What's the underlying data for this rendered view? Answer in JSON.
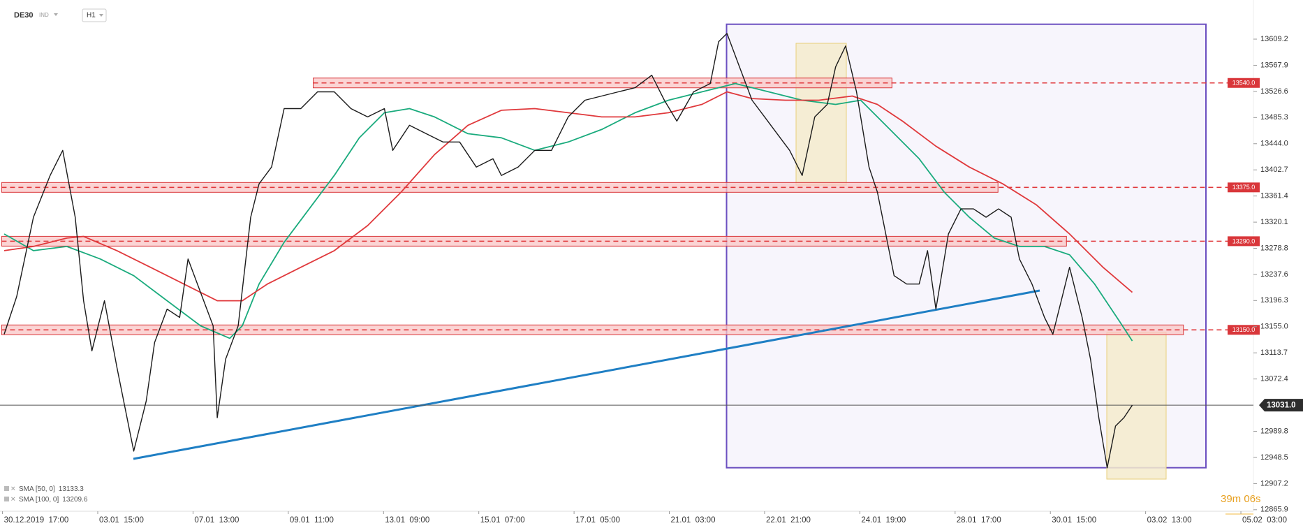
{
  "chart_data": {
    "type": "line",
    "symbol": "DE30",
    "instrument_type": "IND",
    "timeframe": "H1",
    "countdown": "39m 06s",
    "xlim": [
      -3,
      1497
    ],
    "ylim": [
      12863.5,
      13671
    ],
    "xticks": [
      {
        "value": 0,
        "label": "30.12.2019  17:00"
      },
      {
        "value": 114,
        "label": "03.01  15:00"
      },
      {
        "value": 228,
        "label": "07.01  13:00"
      },
      {
        "value": 342,
        "label": "09.01  11:00"
      },
      {
        "value": 456,
        "label": "13.01  09:00"
      },
      {
        "value": 570,
        "label": "15.01  07:00"
      },
      {
        "value": 684,
        "label": "17.01  05:00"
      },
      {
        "value": 798,
        "label": "21.01  03:00"
      },
      {
        "value": 912,
        "label": "22.01  21:00"
      },
      {
        "value": 1026,
        "label": "24.01  19:00"
      },
      {
        "value": 1140,
        "label": "28.01  17:00"
      },
      {
        "value": 1254,
        "label": "30.01  15:00"
      },
      {
        "value": 1368,
        "label": "03.02  13:00"
      },
      {
        "value": 1482,
        "label": "05.02  03:00"
      }
    ],
    "yticks": [
      13609.2,
      13567.9,
      13526.6,
      13485.3,
      {
        "value": 13444,
        "label": "13444.0"
      },
      13402.7,
      13361.4,
      13320.1,
      13278.8,
      13237.6,
      13196.3,
      {
        "value": 13155,
        "label": "13155.0"
      },
      13113.7,
      13072.4,
      12989.8,
      12948.5,
      12907.2,
      12865.9
    ],
    "last_price": {
      "value": 13031,
      "label": "13031.0"
    },
    "levels": [
      {
        "value": 13540,
        "label": "13540.0"
      },
      {
        "value": 13375,
        "label": "13375.0"
      },
      {
        "value": 13290,
        "label": "13290.0"
      },
      {
        "value": 13150,
        "label": "13150.0"
      }
    ],
    "series": [
      {
        "color": "#1b1b1b",
        "x": [
          2,
          17,
          37,
          57,
          72,
          87,
          97,
          107,
          122,
          137,
          157,
          172,
          182,
          197,
          212,
          222,
          237,
          252,
          257,
          267,
          282,
          297,
          307,
          322,
          337,
          357,
          377,
          397,
          417,
          437,
          457,
          467,
          487,
          507,
          527,
          547,
          567,
          587,
          597,
          617,
          637,
          657,
          677,
          697,
          717,
          737,
          757,
          777,
          792,
          807,
          827,
          847,
          857,
          867,
          882,
          897,
          912,
          927,
          942,
          957,
          972,
          987,
          997,
          1009,
          1022,
          1037,
          1047,
          1057,
          1067,
          1082,
          1097,
          1107,
          1117,
          1132,
          1147,
          1162,
          1177,
          1192,
          1207,
          1217,
          1232,
          1247,
          1257,
          1267,
          1277,
          1292,
          1302,
          1312,
          1322,
          1332,
          1342,
          1352
        ],
        "values": [
          13143.2,
          13202.6,
          13327.9,
          13393.9,
          13433.5,
          13327.9,
          13196.0,
          13116.8,
          13196.0,
          13090.4,
          12958.5,
          13037.6,
          13130.0,
          13182.8,
          13169.6,
          13262.0,
          13209.2,
          13156.4,
          13011.2,
          13103.6,
          13156.4,
          13327.9,
          13380.7,
          13407.1,
          13499.5,
          13499.5,
          13525.9,
          13525.9,
          13499.5,
          13486.3,
          13499.5,
          13433.5,
          13473.1,
          13459.9,
          13446.7,
          13446.7,
          13407.1,
          13420.3,
          13393.9,
          13407.1,
          13433.5,
          13433.5,
          13486.3,
          13512.7,
          13519.3,
          13525.9,
          13532.5,
          13552.2,
          13512.7,
          13479.7,
          13525.9,
          13539.1,
          13605.0,
          13618.2,
          13565.4,
          13512.7,
          13486.3,
          13459.9,
          13433.5,
          13393.9,
          13486.3,
          13506.1,
          13565.4,
          13598.4,
          13525.9,
          13407.1,
          13367.5,
          13301.5,
          13235.6,
          13222.4,
          13222.4,
          13275.1,
          13182.8,
          13301.5,
          13341.1,
          13341.1,
          13327.9,
          13341.1,
          13327.9,
          13262.0,
          13222.4,
          13169.6,
          13143.2,
          13196.0,
          13248.8,
          13169.6,
          13103.6,
          13011.2,
          12932.1,
          12998.1,
          13011.2,
          13031.0
        ]
      },
      {
        "name": "SMA [50, 0]",
        "legend_value": 13133.3,
        "color": "#1aab7d",
        "x": [
          2,
          37,
          77,
          117,
          157,
          197,
          237,
          272,
          287,
          307,
          337,
          367,
          397,
          427,
          457,
          487,
          517,
          557,
          597,
          637,
          677,
          717,
          757,
          797,
          837,
          877,
          917,
          957,
          997,
          1027,
          1057,
          1097,
          1127,
          1157,
          1187,
          1217,
          1247,
          1277,
          1307,
          1337,
          1352
        ],
        "values": [
          13301.5,
          13275.1,
          13281.7,
          13262.0,
          13235.6,
          13196.0,
          13156.4,
          13136.6,
          13156.4,
          13222.4,
          13288.3,
          13341.1,
          13393.9,
          13453.3,
          13492.9,
          13499.5,
          13486.3,
          13459.9,
          13453.3,
          13433.5,
          13446.7,
          13466.5,
          13492.9,
          13512.7,
          13525.9,
          13539.1,
          13525.9,
          13512.7,
          13506.1,
          13512.7,
          13473.1,
          13420.3,
          13367.5,
          13327.9,
          13294.9,
          13281.7,
          13281.7,
          13268.6,
          13222.4,
          13163.0,
          13132.6
        ]
      },
      {
        "name": "SMA [100, 0]",
        "legend_value": 13209.6,
        "color": "#e0393c",
        "x": [
          2,
          37,
          77,
          97,
          137,
          177,
          217,
          257,
          287,
          317,
          357,
          397,
          437,
          477,
          517,
          557,
          597,
          637,
          677,
          717,
          757,
          797,
          837,
          867,
          897,
          937,
          977,
          1017,
          1047,
          1077,
          1117,
          1157,
          1197,
          1237,
          1277,
          1317,
          1352
        ],
        "values": [
          13275.1,
          13281.7,
          13294.9,
          13297.6,
          13275.1,
          13248.8,
          13222.4,
          13196.0,
          13196.0,
          13222.4,
          13248.8,
          13275.1,
          13314.7,
          13367.5,
          13426.9,
          13473.1,
          13496.8,
          13499.5,
          13492.9,
          13486.3,
          13486.3,
          13492.9,
          13506.1,
          13525.9,
          13515.3,
          13512.7,
          13512.7,
          13519.3,
          13506.1,
          13479.7,
          13440.1,
          13407.1,
          13380.7,
          13347.7,
          13301.5,
          13248.8,
          13209.2
        ]
      }
    ]
  }
}
